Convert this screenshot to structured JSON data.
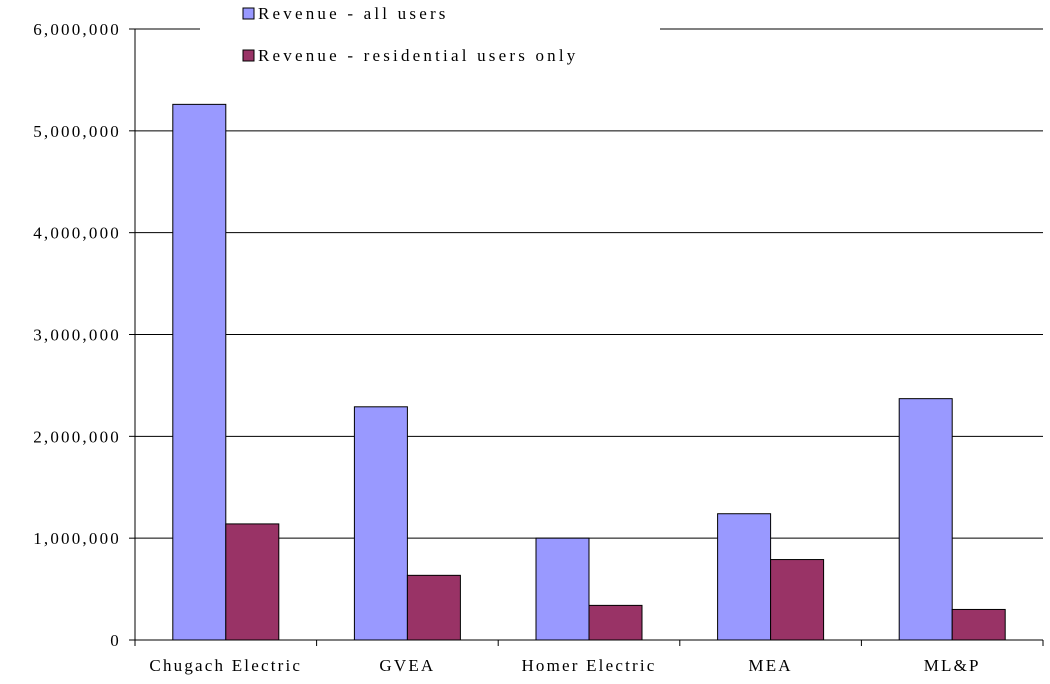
{
  "chart_data": {
    "type": "bar",
    "categories": [
      "Chugach Electric",
      "GVEA",
      "Homer Electric",
      "MEA",
      "ML&P"
    ],
    "series": [
      {
        "name": "Revenue - all users",
        "color": "#9999ff",
        "values": [
          5260000,
          2290000,
          1000000,
          1240000,
          2370000
        ]
      },
      {
        "name": "Revenue - residential users only",
        "color": "#993366",
        "values": [
          1140000,
          635000,
          340000,
          790000,
          300000
        ]
      }
    ],
    "ylim": [
      0,
      6000000
    ],
    "yticks": [
      0,
      1000000,
      2000000,
      3000000,
      4000000,
      5000000,
      6000000
    ],
    "ytick_labels": [
      "0",
      "1,000,000",
      "2,000,000",
      "3,000,000",
      "4,000,000",
      "5,000,000",
      "6,000,000"
    ],
    "gridlines": true,
    "legend_position": "top-left",
    "title": "",
    "xlabel": "",
    "ylabel": ""
  }
}
